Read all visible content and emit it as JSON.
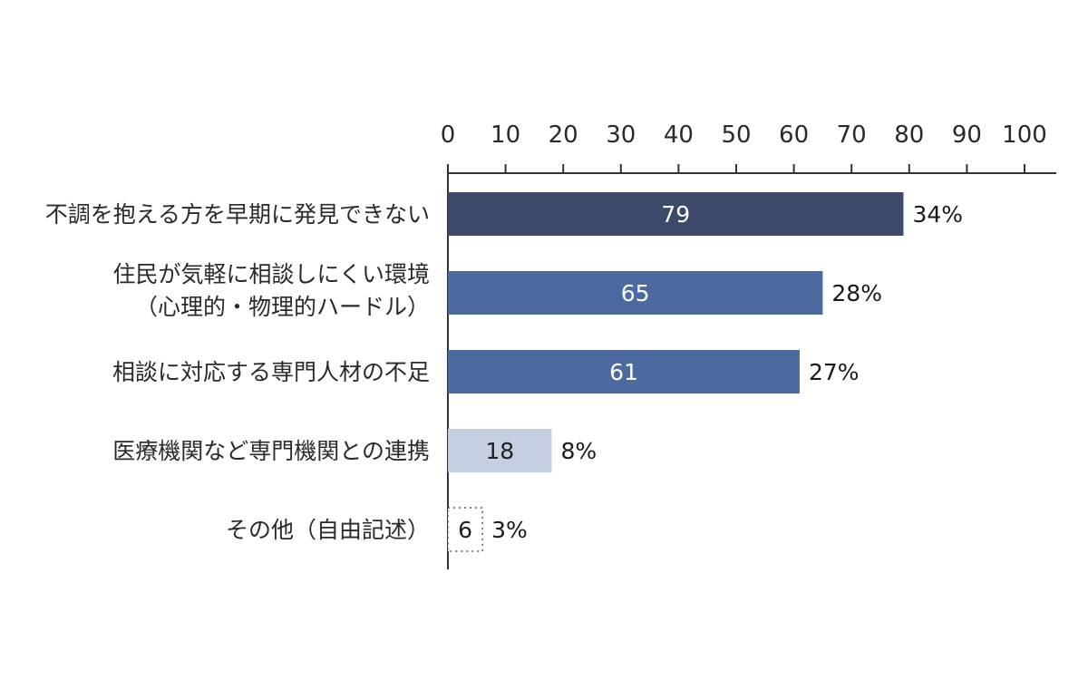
{
  "chart_data": {
    "type": "bar",
    "orientation": "horizontal",
    "categories": [
      [
        "不調を抱える方を早期に発見できない"
      ],
      [
        "住民が気軽に相談しにくい環境",
        "（心理的・物理的ハードル）"
      ],
      [
        "相談に対応する専門人材の不足"
      ],
      [
        "医療機関など専門機関との連携"
      ],
      [
        "その他（自由記述）"
      ]
    ],
    "values": [
      79,
      65,
      61,
      18,
      6
    ],
    "value_labels": [
      "79",
      "65",
      "61",
      "18",
      "6"
    ],
    "percent_labels": [
      "34%",
      "28%",
      "27%",
      "8%",
      "3%"
    ],
    "xlim": [
      0,
      100
    ],
    "xticks": [
      0,
      10,
      20,
      30,
      40,
      50,
      60,
      70,
      80,
      90,
      100
    ],
    "x_axis_position": "top",
    "bar_colors": [
      "#3b4a6b",
      "#4d6aa0",
      "#4d6aa0",
      "#c6cfe2",
      "#ffffff"
    ],
    "value_text_colors": [
      "#ffffff",
      "#ffffff",
      "#ffffff",
      "#222222",
      "#222222"
    ],
    "last_bar_style": "dotted-outline",
    "title": "",
    "xlabel": "",
    "ylabel": "",
    "grid": false,
    "legend": "none"
  }
}
